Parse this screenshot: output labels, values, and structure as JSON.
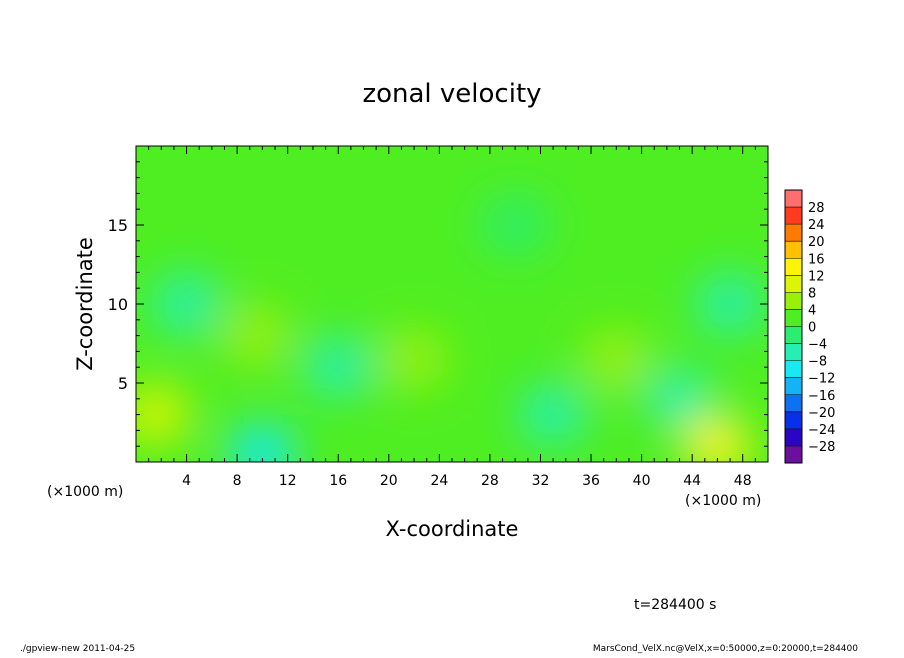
{
  "chart_data": {
    "type": "heatmap",
    "title": "zonal velocity",
    "xlabel": "X-coordinate",
    "ylabel": "Z-coordinate",
    "x_unit": "(×1000 m)",
    "x_ticks": [
      4,
      8,
      12,
      16,
      20,
      24,
      28,
      32,
      36,
      40,
      44,
      48
    ],
    "xlim": [
      0,
      50
    ],
    "y_ticks": [
      5,
      10,
      15
    ],
    "ylim": [
      0,
      20
    ],
    "colorbar": {
      "levels": [
        -32,
        -28,
        -24,
        -20,
        -16,
        -12,
        -8,
        -4,
        0,
        4,
        8,
        12,
        16,
        20,
        24,
        28,
        32
      ],
      "tick_labels": [
        "28",
        "24",
        "20",
        "16",
        "12",
        "8",
        "4",
        "0",
        "−4",
        "−8",
        "−12",
        "−16",
        "−20",
        "−24",
        "−28"
      ],
      "colors": [
        "#6a0f9e",
        "#2a06c4",
        "#0a2fea",
        "#0d72f2",
        "#12b4f6",
        "#18e9f2",
        "#25f0b4",
        "#2bee70",
        "#4fee22",
        "#9bf00a",
        "#dcf506",
        "#fff30a",
        "#ffc000",
        "#ff7a00",
        "#ff3c1e",
        "#ff6e6e"
      ]
    },
    "field_features": [
      {
        "x": 4,
        "z": 10,
        "value": -8
      },
      {
        "x": 1.5,
        "z": 3,
        "value": 10
      },
      {
        "x": 10,
        "z": 0.5,
        "value": -12
      },
      {
        "x": 9.5,
        "z": 8,
        "value": 6
      },
      {
        "x": 16,
        "z": 6,
        "value": -6
      },
      {
        "x": 22,
        "z": 6.5,
        "value": 7
      },
      {
        "x": 33,
        "z": 3,
        "value": -5
      },
      {
        "x": 47,
        "z": 10,
        "value": -8
      },
      {
        "x": 46,
        "z": 1,
        "value": 12
      },
      {
        "x": 43,
        "z": 4,
        "value": -7
      },
      {
        "x": 30,
        "z": 15,
        "value": -3
      },
      {
        "x": 38,
        "z": 6.5,
        "value": 5
      }
    ],
    "background_value": 0,
    "time_label": "t=284400 s"
  },
  "footer": {
    "left": "./gpview-new  2011-04-25",
    "right": "MarsCond_VelX.nc@VelX,x=0:50000,z=0:20000,t=284400"
  }
}
